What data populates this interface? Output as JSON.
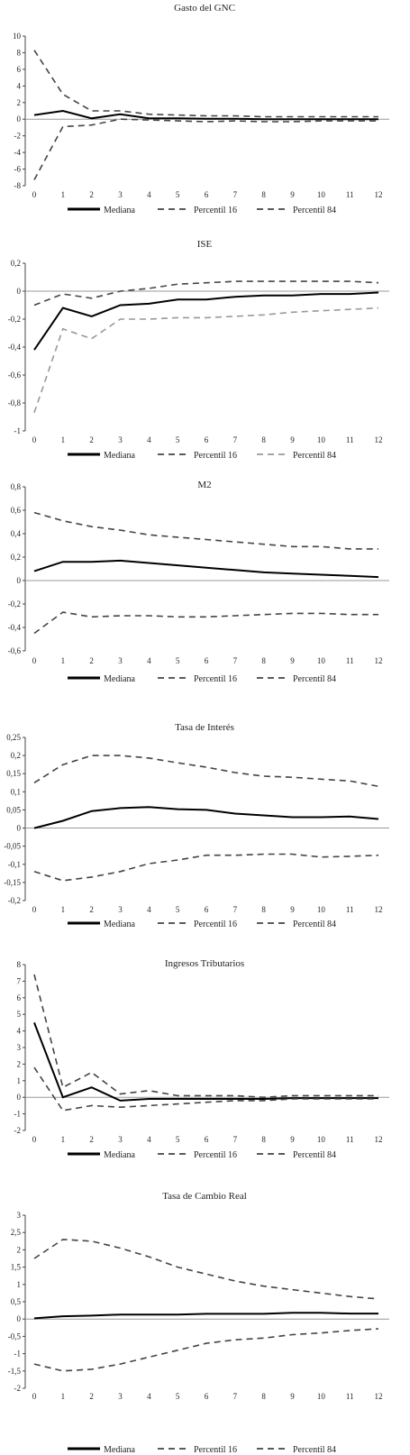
{
  "chart_data": [
    {
      "type": "line",
      "title": "Gasto del GNC",
      "x": [
        0,
        1,
        2,
        3,
        4,
        5,
        6,
        7,
        8,
        9,
        10,
        11,
        12
      ],
      "ylim": [
        -8,
        10
      ],
      "yticks": [
        -8,
        -6,
        -4,
        -2,
        0,
        2,
        4,
        6,
        8,
        10
      ],
      "ytick_labels": [
        "-8",
        "-6",
        "-4",
        "-2",
        "0",
        "2",
        "4",
        "6",
        "8",
        "10"
      ],
      "series": [
        {
          "name": "Mediana",
          "style": "solid",
          "color": "#000000",
          "values": [
            0.5,
            1.0,
            0.1,
            0.6,
            0.1,
            0.1,
            0.05,
            0.05,
            0.0,
            0.0,
            0.0,
            0.0,
            0.0
          ]
        },
        {
          "name": "Percentil 16",
          "style": "dashed",
          "color": "#444444",
          "values": [
            -7.3,
            -0.9,
            -0.7,
            0.0,
            -0.1,
            -0.2,
            -0.3,
            -0.2,
            -0.3,
            -0.3,
            -0.2,
            -0.2,
            -0.2
          ]
        },
        {
          "name": "Percentil 84",
          "style": "dashed",
          "color": "#444444",
          "values": [
            8.3,
            3.0,
            1.0,
            1.0,
            0.6,
            0.5,
            0.4,
            0.4,
            0.3,
            0.3,
            0.3,
            0.3,
            0.3
          ]
        }
      ]
    },
    {
      "type": "line",
      "title": "ISE",
      "x": [
        0,
        1,
        2,
        3,
        4,
        5,
        6,
        7,
        8,
        9,
        10,
        11,
        12
      ],
      "ylim": [
        -1,
        0.2
      ],
      "yticks": [
        -1,
        -0.8,
        -0.6,
        -0.4,
        -0.2,
        0,
        0.2
      ],
      "ytick_labels": [
        "-1",
        "-0,8",
        "-0,6",
        "-0,4",
        "-0,2",
        "0",
        "0,2"
      ],
      "series": [
        {
          "name": "Mediana",
          "style": "solid",
          "color": "#000000",
          "values": [
            -0.42,
            -0.12,
            -0.18,
            -0.1,
            -0.09,
            -0.06,
            -0.06,
            -0.04,
            -0.03,
            -0.03,
            -0.02,
            -0.02,
            -0.01
          ]
        },
        {
          "name": "Percentil 16",
          "style": "dashed",
          "color": "#444444",
          "values": [
            -0.1,
            -0.02,
            -0.05,
            0.0,
            0.02,
            0.05,
            0.06,
            0.07,
            0.07,
            0.07,
            0.07,
            0.07,
            0.06
          ]
        },
        {
          "name": "Percentil 84",
          "style": "dashed",
          "color": "#999999",
          "values": [
            -0.87,
            -0.27,
            -0.34,
            -0.2,
            -0.2,
            -0.19,
            -0.19,
            -0.18,
            -0.17,
            -0.15,
            -0.14,
            -0.13,
            -0.12
          ]
        }
      ]
    },
    {
      "type": "line",
      "title": "M2",
      "x": [
        0,
        1,
        2,
        3,
        4,
        5,
        6,
        7,
        8,
        9,
        10,
        11,
        12
      ],
      "ylim": [
        -0.6,
        0.8
      ],
      "yticks": [
        -0.6,
        -0.4,
        -0.2,
        0,
        0.2,
        0.4,
        0.6,
        0.8
      ],
      "ytick_labels": [
        "-0,6",
        "-0,4",
        "-0,2",
        "0",
        "0,2",
        "0,4",
        "0,6",
        "0,8"
      ],
      "series": [
        {
          "name": "Mediana",
          "style": "solid",
          "color": "#000000",
          "values": [
            0.08,
            0.16,
            0.16,
            0.17,
            0.15,
            0.13,
            0.11,
            0.09,
            0.07,
            0.06,
            0.05,
            0.04,
            0.03
          ]
        },
        {
          "name": "Percentil 16",
          "style": "dashed",
          "color": "#444444",
          "values": [
            0.58,
            0.51,
            0.46,
            0.43,
            0.39,
            0.37,
            0.35,
            0.33,
            0.31,
            0.29,
            0.29,
            0.27,
            0.27
          ]
        },
        {
          "name": "Percentil 84",
          "style": "dashed",
          "color": "#444444",
          "values": [
            -0.45,
            -0.27,
            -0.31,
            -0.3,
            -0.3,
            -0.31,
            -0.31,
            -0.3,
            -0.29,
            -0.28,
            -0.28,
            -0.29,
            -0.29
          ]
        }
      ]
    },
    {
      "type": "line",
      "title": "Tasa de Interés",
      "x": [
        0,
        1,
        2,
        3,
        4,
        5,
        6,
        7,
        8,
        9,
        10,
        11,
        12
      ],
      "ylim": [
        -0.2,
        0.25
      ],
      "yticks": [
        -0.2,
        -0.15,
        -0.1,
        -0.05,
        0,
        0.05,
        0.1,
        0.15,
        0.2,
        0.25
      ],
      "ytick_labels": [
        "-0,2",
        "-0,15",
        "-0,1",
        "-0,05",
        "0",
        "0,05",
        "0,1",
        "0,15",
        "0,2",
        "0,25"
      ],
      "series": [
        {
          "name": "Mediana",
          "style": "solid",
          "color": "#000000",
          "values": [
            0.0,
            0.02,
            0.047,
            0.055,
            0.058,
            0.052,
            0.05,
            0.04,
            0.035,
            0.03,
            0.03,
            0.032,
            0.025
          ]
        },
        {
          "name": "Percentil 16",
          "style": "dashed",
          "color": "#444444",
          "values": [
            0.125,
            0.175,
            0.2,
            0.2,
            0.193,
            0.18,
            0.168,
            0.153,
            0.143,
            0.14,
            0.135,
            0.13,
            0.115
          ]
        },
        {
          "name": "Percentil 84",
          "style": "dashed",
          "color": "#444444",
          "values": [
            -0.12,
            -0.145,
            -0.135,
            -0.12,
            -0.098,
            -0.088,
            -0.075,
            -0.075,
            -0.072,
            -0.072,
            -0.08,
            -0.078,
            -0.075
          ]
        }
      ]
    },
    {
      "type": "line",
      "title": "Ingresos Tributarios",
      "x": [
        0,
        1,
        2,
        3,
        4,
        5,
        6,
        7,
        8,
        9,
        10,
        11,
        12
      ],
      "ylim": [
        -2,
        8
      ],
      "yticks": [
        -2,
        -1,
        0,
        1,
        2,
        3,
        4,
        5,
        6,
        7,
        8
      ],
      "ytick_labels": [
        "-2",
        "-1",
        "0",
        "1",
        "2",
        "3",
        "4",
        "5",
        "6",
        "7",
        "8"
      ],
      "series": [
        {
          "name": "Mediana",
          "style": "solid",
          "color": "#000000",
          "values": [
            4.5,
            0.0,
            0.6,
            -0.2,
            -0.1,
            -0.1,
            -0.1,
            -0.1,
            -0.1,
            -0.05,
            -0.05,
            -0.05,
            -0.05
          ]
        },
        {
          "name": "Percentil 16",
          "style": "dashed",
          "color": "#444444",
          "values": [
            7.4,
            0.6,
            1.5,
            0.2,
            0.4,
            0.1,
            0.1,
            0.1,
            0.0,
            0.1,
            0.1,
            0.1,
            0.1
          ]
        },
        {
          "name": "Percentil 84",
          "style": "dashed",
          "color": "#444444",
          "values": [
            1.8,
            -0.8,
            -0.5,
            -0.6,
            -0.5,
            -0.4,
            -0.3,
            -0.2,
            -0.2,
            -0.1,
            -0.1,
            -0.1,
            -0.1
          ]
        }
      ]
    },
    {
      "type": "line",
      "title": "Tasa de Cambio Real",
      "x": [
        0,
        1,
        2,
        3,
        4,
        5,
        6,
        7,
        8,
        9,
        10,
        11,
        12
      ],
      "ylim": [
        -2,
        3
      ],
      "yticks": [
        -2,
        -1.5,
        -1,
        -0.5,
        0,
        0.5,
        1,
        1.5,
        2,
        2.5,
        3
      ],
      "ytick_labels": [
        "-2",
        "-1,5",
        "-1",
        "-0,5",
        "0",
        "0,5",
        "1",
        "1,5",
        "2",
        "2,5",
        "3"
      ],
      "series": [
        {
          "name": "Mediana",
          "style": "solid",
          "color": "#000000",
          "values": [
            0.02,
            0.08,
            0.1,
            0.13,
            0.13,
            0.13,
            0.15,
            0.15,
            0.15,
            0.18,
            0.18,
            0.16,
            0.16
          ]
        },
        {
          "name": "Percentil 16",
          "style": "dashed",
          "color": "#444444",
          "values": [
            1.75,
            2.3,
            2.25,
            2.05,
            1.8,
            1.5,
            1.3,
            1.1,
            0.95,
            0.85,
            0.75,
            0.65,
            0.58
          ]
        },
        {
          "name": "Percentil 84",
          "style": "dashed",
          "color": "#444444",
          "values": [
            -1.3,
            -1.5,
            -1.45,
            -1.3,
            -1.1,
            -0.9,
            -0.7,
            -0.6,
            -0.55,
            -0.45,
            -0.4,
            -0.33,
            -0.28
          ]
        }
      ]
    }
  ]
}
